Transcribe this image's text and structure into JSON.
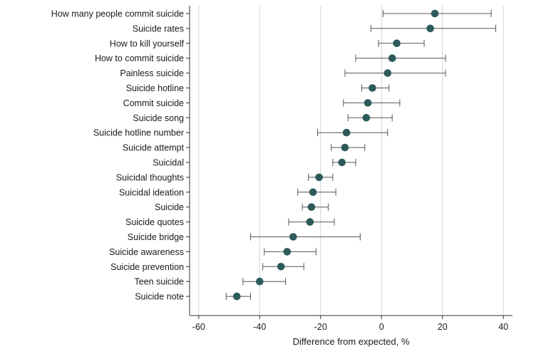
{
  "chart_data": {
    "type": "forest",
    "title": "",
    "xlabel": "Difference from expected, %",
    "ylabel": "",
    "xlim": [
      -63,
      43
    ],
    "xticks": [
      -60,
      -40,
      -20,
      0,
      20,
      40
    ],
    "tick_labels": [
      "-60",
      "-40",
      "-20",
      "0",
      "20",
      "40"
    ],
    "grid": "vertical",
    "colors": {
      "point": "#2c5a5a",
      "ci": "#555555",
      "grid": "#d4d4d4",
      "axis": "#333333"
    },
    "rows": [
      {
        "label": "How many people commit suicide",
        "estimate": 17.5,
        "lower": 0.5,
        "upper": 36
      },
      {
        "label": "Suicide rates",
        "estimate": 16,
        "lower": -3.5,
        "upper": 37.5
      },
      {
        "label": "How to kill yourself",
        "estimate": 5,
        "lower": -1,
        "upper": 14
      },
      {
        "label": "How to commit suicide",
        "estimate": 3.5,
        "lower": -8.5,
        "upper": 21
      },
      {
        "label": "Painless suicide",
        "estimate": 2,
        "lower": -12,
        "upper": 21
      },
      {
        "label": "Suicide hotline",
        "estimate": -3,
        "lower": -6.5,
        "upper": 2.5
      },
      {
        "label": "Commit suicide",
        "estimate": -4.5,
        "lower": -12.5,
        "upper": 6
      },
      {
        "label": "Suicide song",
        "estimate": -5,
        "lower": -11,
        "upper": 3.5
      },
      {
        "label": "Suicide hotline number",
        "estimate": -11.5,
        "lower": -21,
        "upper": 2
      },
      {
        "label": "Suicide attempt",
        "estimate": -12,
        "lower": -16.5,
        "upper": -5.5
      },
      {
        "label": "Suicidal",
        "estimate": -13,
        "lower": -16,
        "upper": -8.5
      },
      {
        "label": "Suicidal thoughts",
        "estimate": -20.5,
        "lower": -24,
        "upper": -16
      },
      {
        "label": "Suicidal ideation",
        "estimate": -22.5,
        "lower": -27.5,
        "upper": -15
      },
      {
        "label": "Suicide",
        "estimate": -23,
        "lower": -26,
        "upper": -17.5
      },
      {
        "label": "Suicide quotes",
        "estimate": -23.5,
        "lower": -30.5,
        "upper": -15.5
      },
      {
        "label": "Suicide bridge",
        "estimate": -29,
        "lower": -43,
        "upper": -7
      },
      {
        "label": "Suicide awareness",
        "estimate": -31,
        "lower": -38.5,
        "upper": -21.5
      },
      {
        "label": "Suicide prevention",
        "estimate": -33,
        "lower": -39,
        "upper": -25.5
      },
      {
        "label": "Teen suicide",
        "estimate": -40,
        "lower": -45.5,
        "upper": -31.5
      },
      {
        "label": "Suicide note",
        "estimate": -47.5,
        "lower": -51,
        "upper": -43
      }
    ]
  }
}
